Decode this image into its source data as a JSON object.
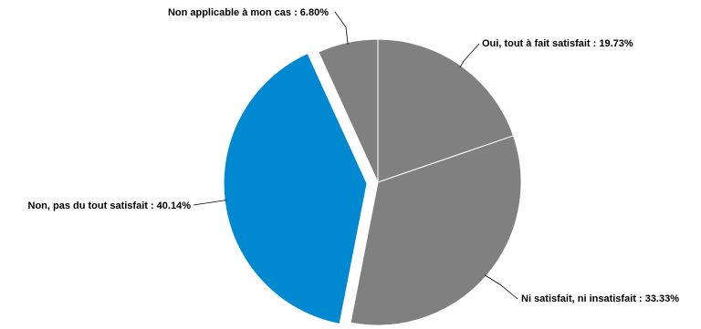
{
  "chart_data": {
    "type": "pie",
    "title": "",
    "slices": [
      {
        "label": "Oui, tout à fait satisfait",
        "value": 19.73,
        "display": "19.73%",
        "color": "#808080",
        "exploded": false
      },
      {
        "label": "Ni satisfait, ni insatisfait",
        "value": 33.33,
        "display": "33.33%",
        "color": "#808080",
        "exploded": false
      },
      {
        "label": "Non, pas du tout satisfait",
        "value": 40.14,
        "display": "40.14%",
        "color": "#0088d1",
        "exploded": true
      },
      {
        "label": "Non applicable à mon cas",
        "value": 6.8,
        "display": "6.80%",
        "color": "#808080",
        "exploded": false
      }
    ],
    "start_angle": "12 o'clock",
    "direction": "clockwise",
    "legend": "none",
    "labels": "outside with leader lines"
  }
}
